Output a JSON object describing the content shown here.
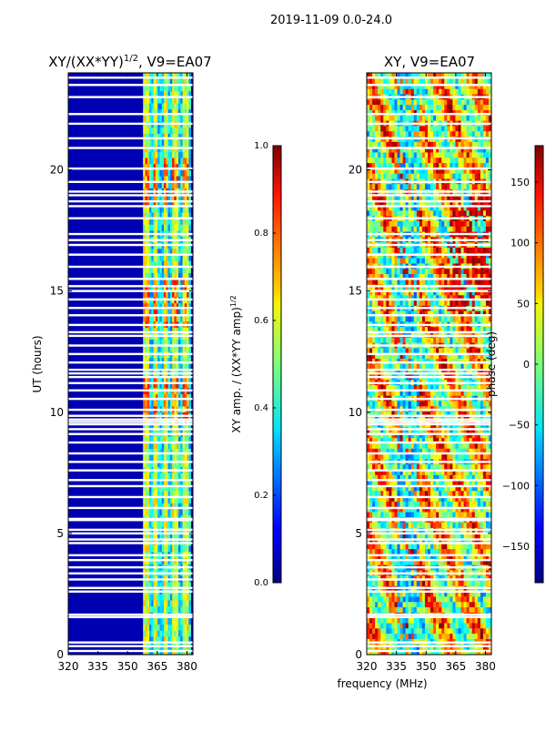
{
  "suptitle": "2019-11-09 0.0-24.0",
  "shared_xlabel": "frequency (MHz)",
  "chart_data": [
    {
      "type": "heatmap",
      "title": "XY/(XX*YY)",
      "title_sup": "1/2",
      "title_suffix": ", V9=EA07",
      "xlabel": "",
      "ylabel": "UT (hours)",
      "xlim": [
        320,
        383
      ],
      "ylim": [
        0,
        24
      ],
      "xticks": [
        320,
        335,
        350,
        365,
        380
      ],
      "yticks": [
        0,
        5,
        10,
        15,
        20
      ],
      "colorbar": {
        "label": "XY amp. / (XX*YY amp)",
        "label_sup": "1/2",
        "range": [
          0.0,
          1.0
        ],
        "ticks": [
          "0.0",
          "0.2",
          "0.4",
          "0.6",
          "0.8",
          "1.0"
        ]
      },
      "description_values": {
        "background_amplitude": 0.05,
        "bright_channel_band_MHz": [
          358,
          382
        ],
        "bright_band_amplitude": 0.45,
        "peak_amplitude_hours": [
          10.5,
          14.5,
          19.5
        ],
        "peak_amplitude": 0.75
      }
    },
    {
      "type": "heatmap",
      "title": "XY, V9=EA07",
      "xlabel": "frequency (MHz)",
      "ylabel": "",
      "xlim": [
        320,
        383
      ],
      "ylim": [
        0,
        24
      ],
      "xticks": [
        320,
        335,
        350,
        365,
        380
      ],
      "yticks": [
        0,
        5,
        10,
        15,
        20
      ],
      "colorbar": {
        "label": "phase (deg)",
        "range": [
          -180,
          180
        ],
        "ticks": [
          "150",
          "100",
          "50",
          "0",
          "−50",
          "−100",
          "−150"
        ],
        "tick_values": [
          150,
          100,
          50,
          0,
          -50,
          -100,
          -150
        ]
      }
    }
  ],
  "gap_hours": [
    0.15,
    0.35,
    0.5,
    1.55,
    1.65,
    2.6,
    2.75,
    3.1,
    3.35,
    3.6,
    3.9,
    4.1,
    4.6,
    4.75,
    5.0,
    5.15,
    5.55,
    5.6,
    6.05,
    6.5,
    6.95,
    7.2,
    7.6,
    7.95,
    8.3,
    8.75,
    9.1,
    9.3,
    9.5,
    9.6,
    9.7,
    9.85,
    10.1,
    10.55,
    10.9,
    11.2,
    11.45,
    11.6,
    11.75,
    12.05,
    12.4,
    12.75,
    13.15,
    13.3,
    13.6,
    14.0,
    14.3,
    14.65,
    15.0,
    15.2,
    15.5,
    16.0,
    16.5,
    16.9,
    17.1,
    17.35,
    18.0,
    18.5,
    18.7,
    18.95,
    19.1,
    19.5,
    20.05,
    20.9,
    21.3,
    21.9,
    22.3,
    23.0,
    23.5,
    23.8
  ]
}
